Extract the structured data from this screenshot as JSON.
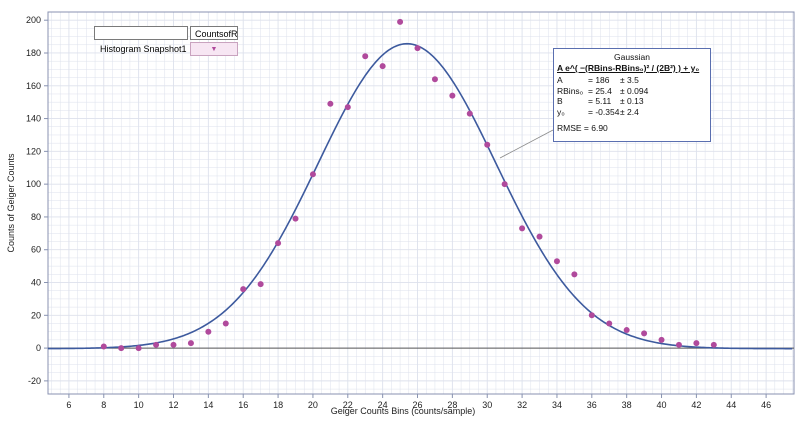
{
  "chart_data": {
    "type": "scatter",
    "title": "",
    "xlabel": "Geiger Counts Bins (counts/sample)",
    "ylabel": "Counts of Geiger Counts",
    "xlim": [
      4.8,
      47.6
    ],
    "ylim": [
      -28,
      205
    ],
    "xticks": [
      6,
      8,
      10,
      12,
      14,
      16,
      18,
      20,
      22,
      24,
      26,
      28,
      30,
      32,
      34,
      36,
      38,
      40,
      42,
      44,
      46
    ],
    "yticks": [
      -20,
      0,
      20,
      40,
      60,
      80,
      100,
      120,
      140,
      160,
      180,
      200
    ],
    "grid": true,
    "series": [
      {
        "name": "CountsofR",
        "color": "#b04a9c",
        "points": [
          [
            8,
            1
          ],
          [
            9,
            0
          ],
          [
            10,
            0
          ],
          [
            11,
            2
          ],
          [
            12,
            2
          ],
          [
            13,
            3
          ],
          [
            14,
            10
          ],
          [
            15,
            15
          ],
          [
            16,
            36
          ],
          [
            17,
            39
          ],
          [
            18,
            64
          ],
          [
            19,
            79
          ],
          [
            20,
            106
          ],
          [
            21,
            149
          ],
          [
            22,
            147
          ],
          [
            23,
            178
          ],
          [
            24,
            172
          ],
          [
            25,
            199
          ],
          [
            26,
            183
          ],
          [
            27,
            164
          ],
          [
            28,
            154
          ],
          [
            29,
            143
          ],
          [
            30,
            124
          ],
          [
            31,
            100
          ],
          [
            32,
            73
          ],
          [
            33,
            68
          ],
          [
            34,
            53
          ],
          [
            35,
            45
          ],
          [
            36,
            20
          ],
          [
            37,
            15
          ],
          [
            38,
            11
          ],
          [
            39,
            9
          ],
          [
            40,
            5
          ],
          [
            41,
            2
          ],
          [
            42,
            3
          ],
          [
            43,
            2
          ]
        ]
      }
    ],
    "fit": {
      "name": "Gaussian",
      "color": "#3d5a9e",
      "A": 186,
      "RBins0": 25.4,
      "B": 5.11,
      "y0": -0.354
    }
  },
  "legend": {
    "header_blank": "",
    "header_label": "CountsofR",
    "row_label": "Histogram Snapshot1",
    "marker_icon": "triangle-down-icon",
    "marker_glyph": "▼"
  },
  "fit_box": {
    "title": "Gaussian",
    "equation": "A e^( −(RBins-RBins₀)² / (2B²) ) + y₀",
    "params": [
      {
        "name": "A",
        "value": "= 186",
        "err": "± 3.5"
      },
      {
        "name": "RBins₀",
        "value": "= 25.4",
        "err": "± 0.094"
      },
      {
        "name": "B",
        "value": "= 5.11",
        "err": "± 0.13"
      },
      {
        "name": "y₀",
        "value": "= -0.354",
        "err": "± 2.4"
      }
    ],
    "rmse": "RMSE = 6.90"
  },
  "colors": {
    "grid": "#dde1ec",
    "axis": "#8892b0",
    "points": "#b04a9c",
    "fit": "#3d5a9e",
    "zero_line": "#555555"
  }
}
